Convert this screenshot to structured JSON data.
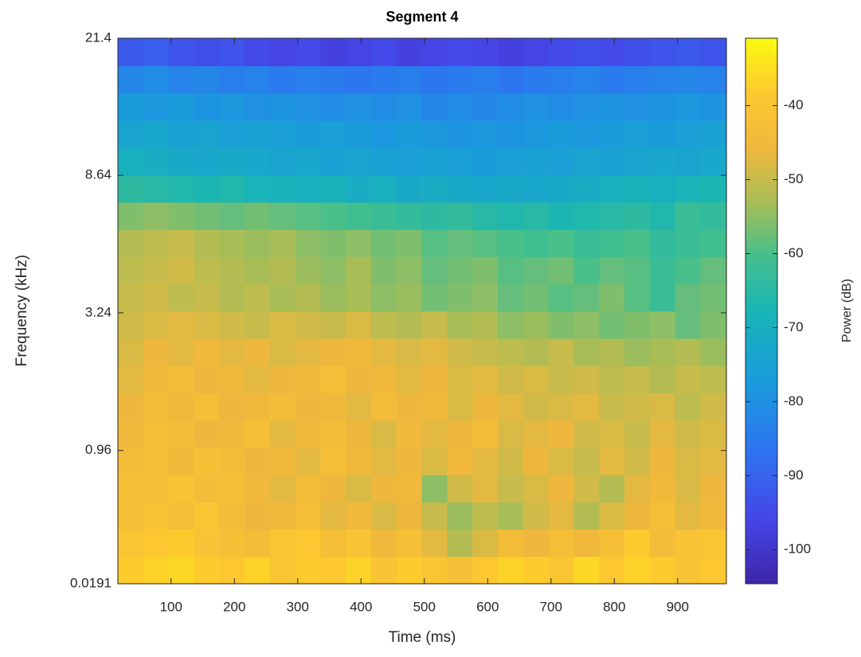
{
  "chart_data": {
    "type": "heatmap",
    "title": "Segment 4",
    "x_label": "Time (ms)",
    "y_label": "Frequency (kHz)",
    "colorbar_label": "Power (dB)",
    "colormap": "parula",
    "yscale": "mel",
    "xlim": [
      16,
      977
    ],
    "ylim": [
      0.0191,
      21.4
    ],
    "clim": [
      -104.6,
      -30.9
    ],
    "xticks": [
      100,
      200,
      300,
      400,
      500,
      600,
      700,
      800,
      900
    ],
    "yticks": [
      0.0191,
      0.96,
      3.24,
      8.64,
      21.4
    ],
    "cticks": [
      -40,
      -50,
      -60,
      -70,
      -80,
      -90,
      -100
    ],
    "x": [
      36,
      76,
      116,
      156,
      196,
      236,
      276,
      316,
      356,
      396,
      436,
      476,
      516,
      556,
      596,
      636,
      676,
      716,
      756,
      796,
      836,
      876,
      916,
      956
    ],
    "y": [
      0.083,
      0.23,
      0.403,
      0.609,
      0.854,
      1.144,
      1.488,
      1.897,
      2.382,
      2.957,
      3.64,
      4.45,
      5.41,
      6.55,
      7.9,
      9.51,
      11.42,
      13.68,
      16.37,
      19.55
    ],
    "values": [
      [
        -38,
        -37,
        -36,
        -38,
        -39,
        -37,
        -40,
        -38,
        -39,
        -37,
        -41,
        -38,
        -40,
        -42,
        -39,
        -37,
        -38,
        -40,
        -36,
        -39,
        -37,
        -38,
        -41,
        -39
      ],
      [
        -40,
        -39,
        -38,
        -41,
        -42,
        -44,
        -40,
        -39,
        -43,
        -41,
        -45,
        -42,
        -47,
        -52,
        -48,
        -44,
        -46,
        -43,
        -45,
        -42,
        -38,
        -44,
        -41,
        -40
      ],
      [
        -42,
        -41,
        -43,
        -40,
        -44,
        -46,
        -45,
        -43,
        -47,
        -45,
        -48,
        -46,
        -50,
        -54,
        -51,
        -53,
        -49,
        -47,
        -52,
        -48,
        -46,
        -43,
        -47,
        -45
      ],
      [
        -43,
        -42,
        -41,
        -44,
        -43,
        -45,
        -47,
        -44,
        -46,
        -48,
        -46,
        -45,
        -55,
        -49,
        -47,
        -50,
        -48,
        -46,
        -49,
        -52,
        -47,
        -45,
        -48,
        -46
      ],
      [
        -44,
        -43,
        -45,
        -42,
        -44,
        -46,
        -45,
        -47,
        -43,
        -45,
        -47,
        -46,
        -48,
        -45,
        -47,
        -49,
        -46,
        -48,
        -50,
        -47,
        -49,
        -46,
        -48,
        -47
      ],
      [
        -45,
        -43,
        -44,
        -46,
        -45,
        -43,
        -47,
        -45,
        -44,
        -46,
        -48,
        -45,
        -47,
        -46,
        -44,
        -48,
        -47,
        -46,
        -49,
        -48,
        -50,
        -47,
        -49,
        -48
      ],
      [
        -46,
        -44,
        -45,
        -43,
        -46,
        -45,
        -44,
        -46,
        -45,
        -47,
        -44,
        -46,
        -45,
        -48,
        -46,
        -47,
        -49,
        -48,
        -47,
        -50,
        -49,
        -48,
        -51,
        -49
      ],
      [
        -47,
        -45,
        -44,
        -46,
        -45,
        -47,
        -46,
        -45,
        -43,
        -46,
        -45,
        -47,
        -46,
        -48,
        -47,
        -49,
        -48,
        -50,
        -49,
        -51,
        -50,
        -52,
        -50,
        -51
      ],
      [
        -48,
        -46,
        -47,
        -45,
        -47,
        -46,
        -48,
        -47,
        -46,
        -45,
        -47,
        -48,
        -47,
        -49,
        -50,
        -51,
        -52,
        -50,
        -53,
        -52,
        -54,
        -53,
        -52,
        -54
      ],
      [
        -49,
        -48,
        -47,
        -48,
        -49,
        -50,
        -48,
        -49,
        -50,
        -48,
        -51,
        -52,
        -50,
        -53,
        -52,
        -55,
        -54,
        -56,
        -55,
        -57,
        -56,
        -55,
        -58,
        -56
      ],
      [
        -50,
        -49,
        -51,
        -50,
        -52,
        -51,
        -53,
        -52,
        -54,
        -53,
        -55,
        -54,
        -57,
        -56,
        -55,
        -58,
        -57,
        -59,
        -58,
        -56,
        -59,
        -62,
        -58,
        -57
      ],
      [
        -51,
        -50,
        -49,
        -51,
        -52,
        -53,
        -52,
        -54,
        -55,
        -53,
        -56,
        -55,
        -58,
        -57,
        -56,
        -59,
        -58,
        -57,
        -60,
        -58,
        -59,
        -62,
        -60,
        -58
      ],
      [
        -52,
        -51,
        -50,
        -52,
        -53,
        -54,
        -53,
        -55,
        -56,
        -55,
        -57,
        -56,
        -59,
        -58,
        -59,
        -60,
        -61,
        -60,
        -62,
        -61,
        -60,
        -63,
        -62,
        -61
      ],
      [
        -56,
        -55,
        -56,
        -57,
        -58,
        -57,
        -58,
        -59,
        -60,
        -61,
        -62,
        -63,
        -64,
        -63,
        -65,
        -66,
        -65,
        -67,
        -66,
        -65,
        -64,
        -66,
        -62,
        -63
      ],
      [
        -64,
        -65,
        -66,
        -67,
        -66,
        -68,
        -69,
        -70,
        -69,
        -71,
        -70,
        -72,
        -71,
        -72,
        -73,
        -72,
        -73,
        -72,
        -71,
        -70,
        -69,
        -70,
        -68,
        -67
      ],
      [
        -70,
        -71,
        -72,
        -73,
        -72,
        -73,
        -74,
        -73,
        -75,
        -74,
        -75,
        -76,
        -75,
        -76,
        -77,
        -76,
        -75,
        -76,
        -74,
        -75,
        -74,
        -73,
        -74,
        -73
      ],
      [
        -74,
        -73,
        -75,
        -74,
        -76,
        -75,
        -76,
        -77,
        -76,
        -77,
        -78,
        -77,
        -78,
        -79,
        -78,
        -79,
        -78,
        -77,
        -78,
        -77,
        -76,
        -77,
        -76,
        -75
      ],
      [
        -77,
        -78,
        -77,
        -79,
        -78,
        -80,
        -79,
        -80,
        -81,
        -80,
        -81,
        -80,
        -82,
        -81,
        -82,
        -81,
        -80,
        -81,
        -80,
        -79,
        -80,
        -79,
        -78,
        -79
      ],
      [
        -82,
        -81,
        -83,
        -82,
        -84,
        -83,
        -85,
        -84,
        -85,
        -86,
        -85,
        -84,
        -86,
        -85,
        -84,
        -86,
        -85,
        -84,
        -83,
        -85,
        -84,
        -83,
        -82,
        -83
      ],
      [
        -92,
        -91,
        -93,
        -94,
        -93,
        -95,
        -96,
        -95,
        -97,
        -96,
        -95,
        -97,
        -96,
        -95,
        -96,
        -97,
        -96,
        -95,
        -94,
        -95,
        -94,
        -93,
        -92,
        -93
      ]
    ]
  }
}
